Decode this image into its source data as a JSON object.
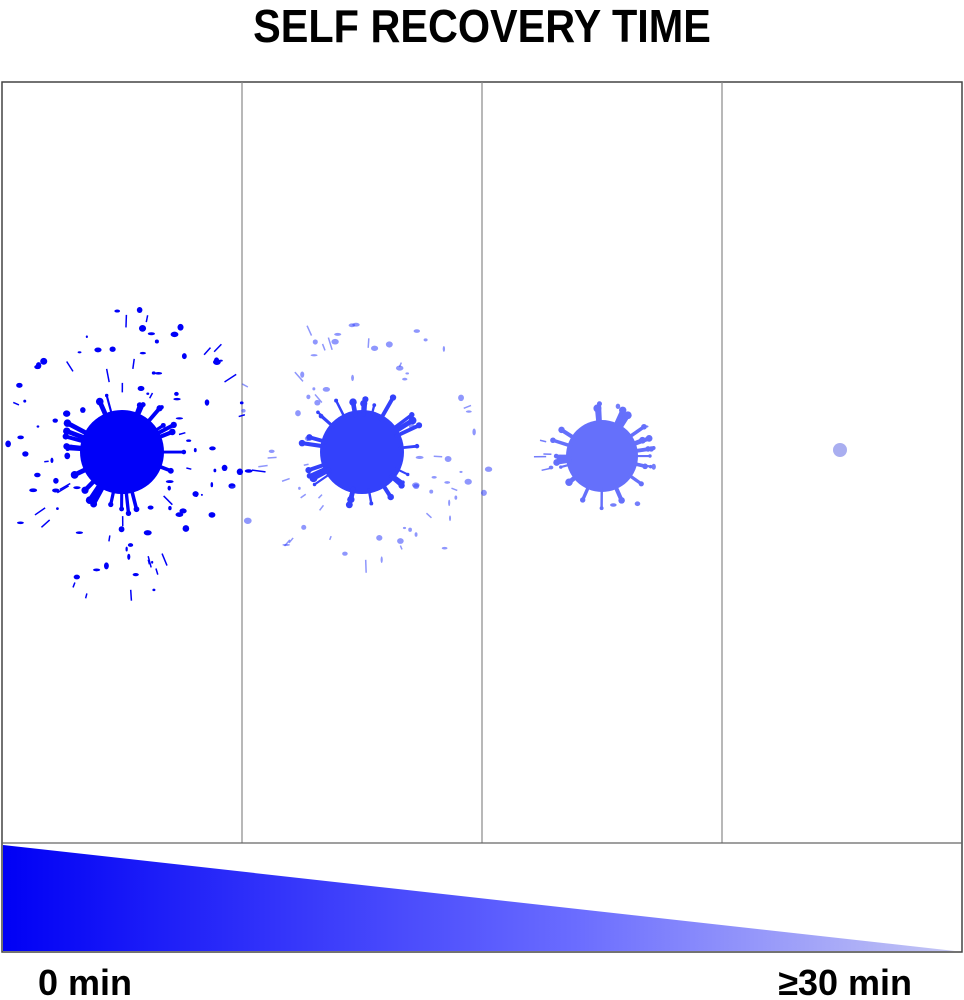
{
  "header": {
    "title": "SELF RECOVERY TIME"
  },
  "scale": {
    "start_label": "0 min",
    "end_label": "≥30 min"
  }
}
